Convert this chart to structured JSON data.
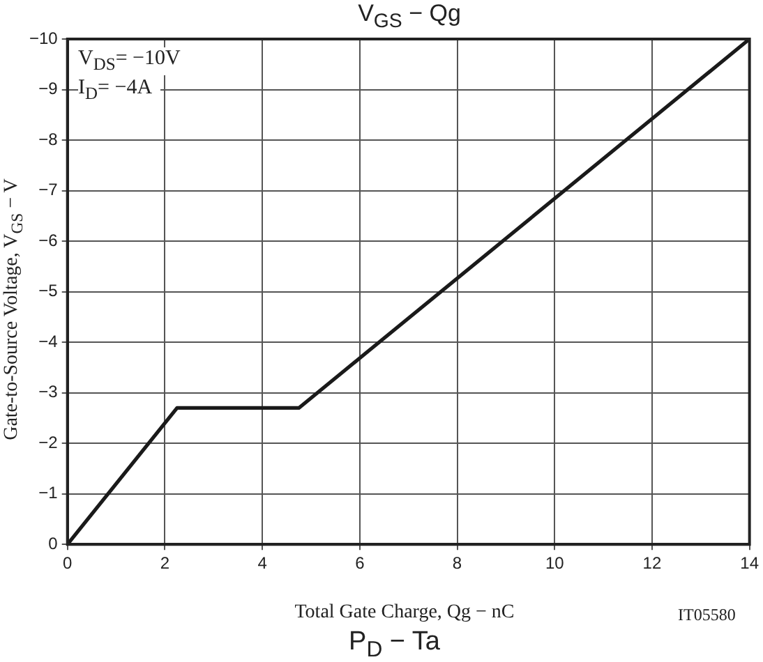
{
  "chart_data": {
    "type": "line",
    "title": "V$_{GS}$ − Qg",
    "xlabel": "Total Gate Charge, Qg  −  nC",
    "ylabel": "Gate-to-Source Voltage, V$_{GS}$  −  V",
    "x": [
      0,
      2.25,
      4.75,
      14
    ],
    "series": [
      {
        "color": "#1a1a1a",
        "values": [
          0,
          -2.7,
          -2.7,
          -10
        ]
      }
    ],
    "xlim": [
      0,
      14
    ],
    "xticks": [
      0,
      2,
      4,
      6,
      8,
      10,
      12,
      14
    ],
    "ylim": [
      0,
      -10
    ],
    "yticks": [
      0,
      -1,
      -2,
      -3,
      -4,
      -5,
      -6,
      -7,
      -8,
      -9,
      -10
    ],
    "grid": true,
    "legend": false,
    "marker": "none",
    "line_style": "solid",
    "annotations": [
      "V$_{DS}$= −10V",
      "I$_{D}$= −4A",
      "IT05580",
      "P$_{D}$ − Ta"
    ]
  }
}
